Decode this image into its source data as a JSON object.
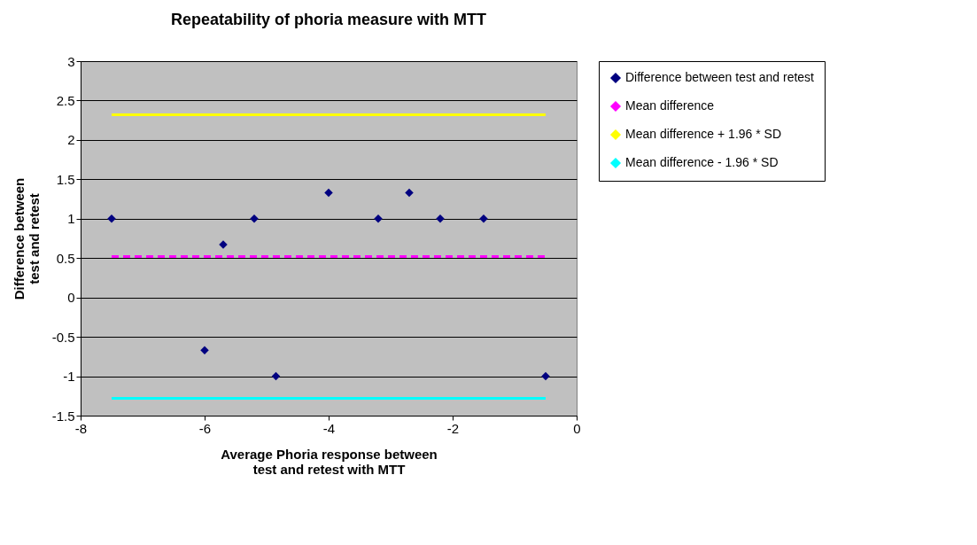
{
  "chart_data": {
    "type": "scatter",
    "title": "Repeatability of phoria measure with MTT",
    "xlabel": "Average Phoria response between test and retest with MTT",
    "ylabel": "Difference between test and retest",
    "xlim": [
      -8,
      0
    ],
    "xticks": [
      -8,
      -6,
      -4,
      -2,
      0
    ],
    "ylim": [
      -1.5,
      3
    ],
    "yticks": [
      -1.5,
      -1,
      -0.5,
      0,
      0.5,
      1,
      1.5,
      2,
      2.5,
      3
    ],
    "grid": "y",
    "legend": "right",
    "series": [
      {
        "name": "Difference between test and retest",
        "color": "#000080",
        "marker": "diamond",
        "x": [
          -7.5,
          -6,
          -5.7,
          -5.2,
          -4.85,
          -4,
          -3.2,
          -2.7,
          -2.2,
          -1.5,
          -0.5
        ],
        "values": [
          1,
          -0.67,
          0.67,
          1,
          -1,
          1.33,
          1,
          1.33,
          1,
          1,
          -1
        ]
      },
      {
        "name": "Mean difference",
        "type": "line",
        "color": "#ff00ff",
        "line_style": "dashed",
        "x": [
          -7.5,
          -0.5
        ],
        "values": [
          0.52,
          0.52
        ]
      },
      {
        "name": "Mean difference + 1.96 * SD",
        "type": "line",
        "color": "#ffff00",
        "line_style": "solid",
        "x": [
          -7.5,
          -0.5
        ],
        "values": [
          2.32,
          2.32
        ]
      },
      {
        "name": "Mean difference - 1.96 * SD",
        "type": "line",
        "color": "#00ffff",
        "line_style": "solid",
        "x": [
          -7.5,
          -0.5
        ],
        "values": [
          -1.28,
          -1.28
        ]
      }
    ]
  }
}
